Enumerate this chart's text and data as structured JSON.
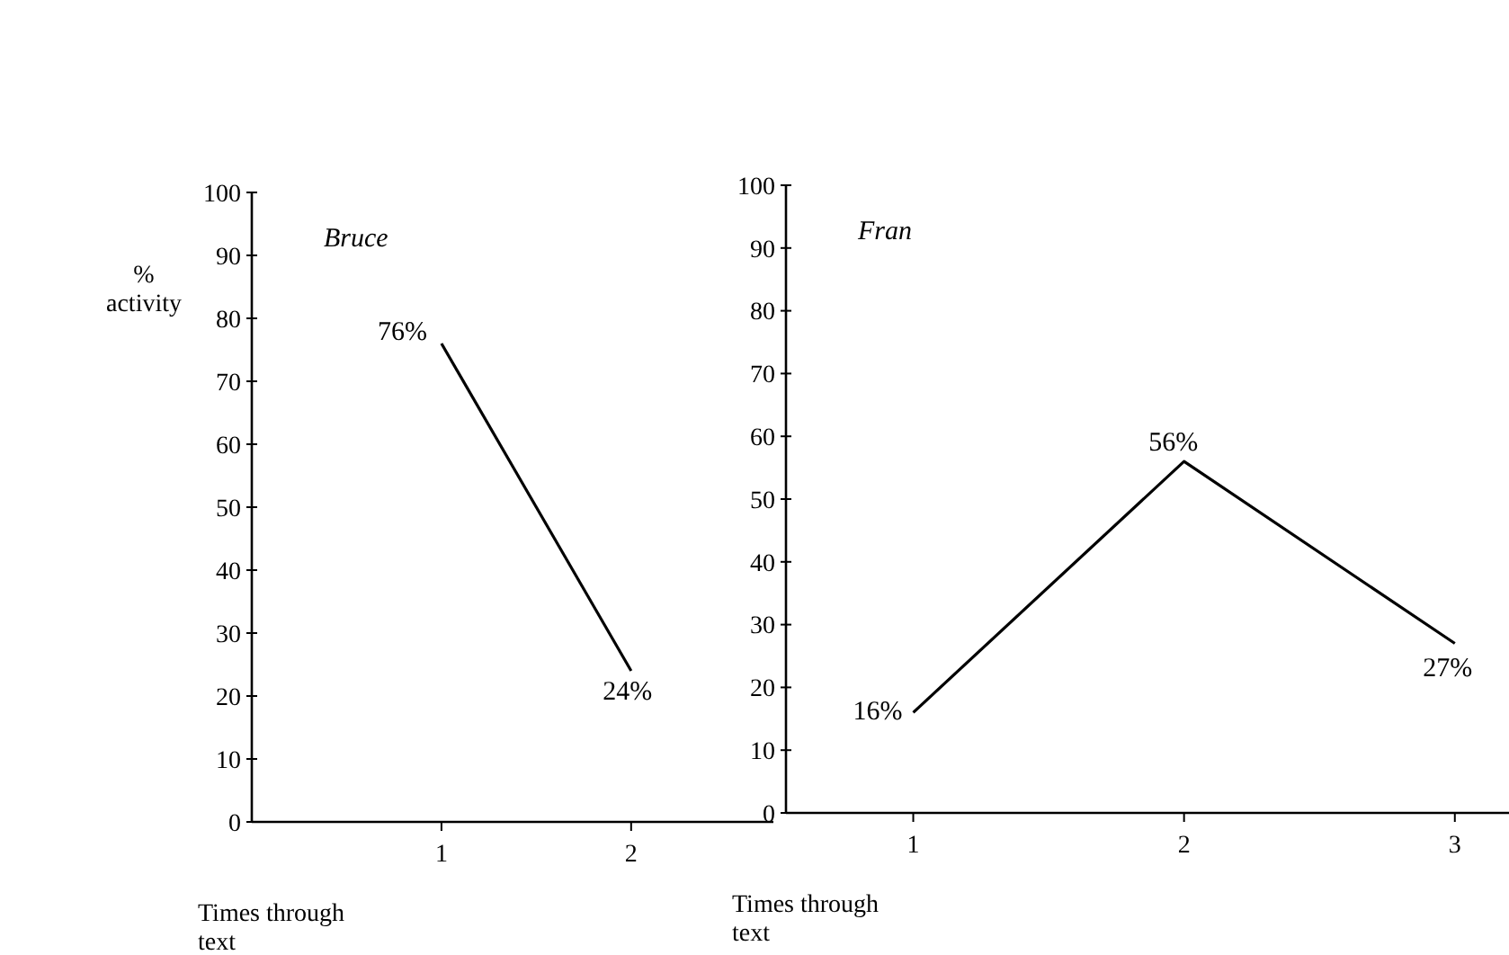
{
  "chart_data": [
    {
      "type": "line",
      "title": "Bruce",
      "ylabel": "% activity",
      "xlabel": "Times through text",
      "x": [
        1,
        2
      ],
      "values": [
        76,
        24
      ],
      "value_labels": [
        "76%",
        "24%"
      ],
      "color": "#000000",
      "xlim": [
        0,
        2.75
      ],
      "xticks": [
        1,
        2
      ],
      "ylim": [
        0,
        100
      ],
      "yticks": [
        0,
        10,
        20,
        30,
        40,
        50,
        60,
        70,
        80,
        90,
        100
      ],
      "grid": false,
      "marker": "none",
      "line_style": "solid"
    },
    {
      "type": "line",
      "title": "Fran",
      "xlabel": "Times through text",
      "x": [
        1,
        2,
        3
      ],
      "values": [
        16,
        56,
        27
      ],
      "value_labels": [
        "16%",
        "56%",
        "27%"
      ],
      "color": "#000000",
      "xlim": [
        0.53,
        3.2
      ],
      "xticks": [
        1,
        2,
        3
      ],
      "ylim": [
        0,
        100
      ],
      "yticks": [
        0,
        10,
        20,
        30,
        40,
        50,
        60,
        70,
        80,
        90,
        100
      ],
      "grid": false,
      "marker": "none",
      "line_style": "solid"
    }
  ]
}
